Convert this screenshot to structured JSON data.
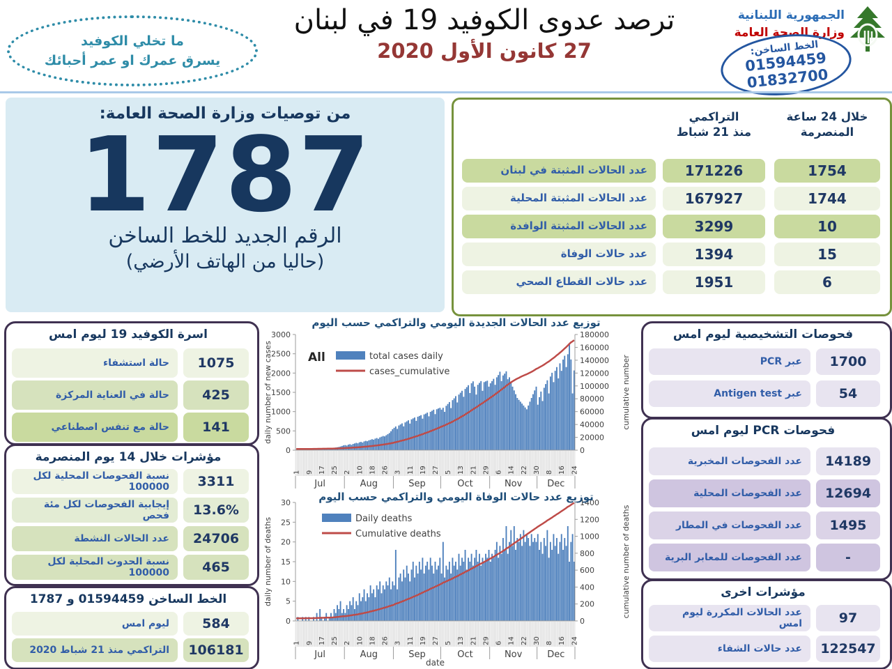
{
  "header": {
    "slogan_line1": "ما تخلي الكوفيد",
    "slogan_line2": "يسرق عمرك او عمر أحبائك",
    "title": "ترصد عدوى الكوفيد 19 في لبنان",
    "date": "27 كانون الأول 2020",
    "ministry_name": "الجمهورية اللبنانية",
    "ministry_dept": "وزارة الصحة العامة",
    "hotline_label": "الخط الساخن:",
    "hotline_1": "01594459",
    "hotline_2": "01832700"
  },
  "recommendation": {
    "title": "من توصيات وزارة الصحة العامة:",
    "number": "1787",
    "line1": "الرقم الجديد للخط الساخن",
    "line2": "(حاليا من الهاتف الأرضي)"
  },
  "summary_table": {
    "col_cumulative_l1": "التراكمي",
    "col_cumulative_l2": "منذ 21 شباط",
    "col_24h_l1": "خلال 24 ساعة",
    "col_24h_l2": "المنصرمة",
    "rows": [
      {
        "label": "عدد الحالات المثبتة في لبنان",
        "cumulative": "171226",
        "last24h": "1754",
        "shade": "g4"
      },
      {
        "label": "عدد الحالات المثبتة المحلية",
        "cumulative": "167927",
        "last24h": "1744",
        "shade": "g1"
      },
      {
        "label": "عدد الحالات المثبتة الوافدة",
        "cumulative": "3299",
        "last24h": "10",
        "shade": "g4"
      },
      {
        "label": "عدد حالات الوفاة",
        "cumulative": "1394",
        "last24h": "15",
        "shade": "g1"
      },
      {
        "label": "عدد حالات القطاع الصحي",
        "cumulative": "1951",
        "last24h": "6",
        "shade": "g1"
      }
    ]
  },
  "beds_box": {
    "title": "اسرة الكوفيد 19 ليوم امس",
    "rows": [
      {
        "value": "1075",
        "label": "حالة استشفاء",
        "shade": "g1"
      },
      {
        "value": "425",
        "label": "حالة في العناية المركزة",
        "shade": "g3"
      },
      {
        "value": "141",
        "label": "حالة مع تنفس اصطناعي",
        "shade": "g4"
      }
    ]
  },
  "indicators_14d_box": {
    "title": "مؤشرات خلال 14 يوم المنصرمة",
    "rows": [
      {
        "value": "3311",
        "label": "نسبة الفحوصات  المحلية لكل 100000",
        "shade": "g1"
      },
      {
        "value": "13.6%",
        "label": "إيجابية الفحوصات لكل مئة فحص",
        "shade": "g2"
      },
      {
        "value": "24706",
        "label": "عدد الحالات النشطة",
        "shade": "g3"
      },
      {
        "value": "465",
        "label": "نسبة الحدوث المحلية لكل 100000",
        "shade": "g3"
      }
    ]
  },
  "hotline_box": {
    "title": "الخط الساخن 01594459 و 1787",
    "rows": [
      {
        "value": "584",
        "label": "ليوم امس",
        "shade": "g1"
      },
      {
        "value": "106181",
        "label": "التراكمي منذ 21 شباط 2020",
        "shade": "g3"
      }
    ]
  },
  "diagnostics_box": {
    "title": "فحوصات التشخيصية ليوم امس",
    "rows": [
      {
        "value": "1700",
        "label": "عبر PCR",
        "shade": "l1"
      },
      {
        "value": "54",
        "label": "عبر Antigen test",
        "shade": "l1"
      }
    ]
  },
  "pcr_box": {
    "title": "فحوصات  PCR ليوم امس",
    "rows": [
      {
        "value": "14189",
        "label": "عدد الفحوصات المخبرية",
        "shade": "l1"
      },
      {
        "value": "12694",
        "label": "عدد الفحوصات المحلية",
        "shade": "l2"
      },
      {
        "value": "1495",
        "label": "عدد الفحوصات في المطار",
        "shade": "l3"
      },
      {
        "value": "-",
        "label": "عدد الفحوصات للمعابر البرية",
        "shade": "l2"
      }
    ]
  },
  "other_box": {
    "title": "مؤشرات اخرى",
    "rows": [
      {
        "value": "97",
        "label": "عدد الحالات المكررة  ليوم امس",
        "shade": "l1"
      },
      {
        "value": "122547",
        "label": "عدد حالات الشفاء",
        "shade": "l1"
      }
    ]
  },
  "colors": {
    "accent_navy": "#17375e",
    "label_blue": "#315da8",
    "green_border": "#76923c",
    "purple_border": "#3f3151",
    "panel_blue": "#d9ebf3",
    "bar_blue": "#4f81bd",
    "line_red": "#be4b48",
    "slogan_teal": "#2e8ca8",
    "date_red": "#953735",
    "ministry_red": "#c00000",
    "ministry_blue": "#2b6cb5",
    "cedar_green": "#35782b"
  },
  "chart_data": [
    {
      "type": "bar",
      "title": "توزيع عدد الحالات الجديدة اليومي والتراكمي حسب اليوم",
      "annotation": "All",
      "legend": [
        "total cases daily",
        "cases_cumulative"
      ],
      "ylabel_left": "daily number of new cases",
      "ylabel_right": "cumulative number",
      "xlabel": "",
      "ylim_left": [
        0,
        3000
      ],
      "ytick_left_step": 500,
      "ylim_right": [
        0,
        180000
      ],
      "ytick_right_step": 20000,
      "legend_position": "top-left",
      "grid": false,
      "months": [
        {
          "name": "Jul",
          "days": 31
        },
        {
          "name": "Aug",
          "days": 31
        },
        {
          "name": "Sep",
          "days": 30
        },
        {
          "name": "Oct",
          "days": 31
        },
        {
          "name": "Nov",
          "days": 30
        },
        {
          "name": "Dec",
          "days": 24
        }
      ],
      "day_tick_interval": 8,
      "bar_color": "#4f81bd",
      "line_color": "#be4b48",
      "cumulative_start": 1800,
      "cumulative_end": 171226,
      "daily": [
        12,
        15,
        9,
        18,
        14,
        22,
        19,
        25,
        21,
        28,
        24,
        32,
        28,
        36,
        31,
        40,
        34,
        44,
        38,
        48,
        42,
        52,
        55,
        60,
        64,
        70,
        76,
        84,
        96,
        110,
        125,
        132,
        120,
        145,
        155,
        138,
        162,
        175,
        190,
        178,
        205,
        215,
        198,
        228,
        242,
        232,
        255,
        268,
        285,
        272,
        300,
        315,
        295,
        332,
        350,
        368,
        358,
        388,
        415,
        445,
        492,
        545,
        580,
        615,
        552,
        640,
        668,
        695,
        618,
        720,
        748,
        775,
        690,
        800,
        825,
        848,
        760,
        868,
        888,
        908,
        818,
        928,
        948,
        975,
        878,
        995,
        1022,
        1050,
        935,
        1062,
        1082,
        1100,
        1052,
        1100,
        995,
        1150,
        1198,
        1248,
        1092,
        1298,
        1345,
        1402,
        1238,
        1442,
        1490,
        1540,
        1385,
        1588,
        1635,
        1685,
        1482,
        1735,
        1785,
        1648,
        1442,
        1695,
        1745,
        1792,
        1540,
        1765,
        1785,
        1802,
        1648,
        1735,
        1792,
        1850,
        1695,
        1890,
        1948,
        2035,
        1792,
        1938,
        1985,
        2045,
        1840,
        1890,
        1745,
        1648,
        1550,
        1452,
        1355,
        1305,
        1258,
        1208,
        1158,
        1108,
        1060,
        1158,
        1258,
        1355,
        1452,
        1550,
        1648,
        1180,
        1375,
        1520,
        1275,
        1618,
        1715,
        1812,
        1472,
        1910,
        2008,
        1765,
        2058,
        2155,
        1862,
        2252,
        2058,
        2350,
        2448,
        2155,
        2488,
        2740,
        2352,
        1472,
        2068
      ]
    },
    {
      "type": "bar",
      "title": "توزيع عدد حالات  الوفاة اليومي والتراكمي حسب اليوم",
      "annotation": "",
      "legend": [
        "Daily deaths",
        "Cumulative deaths"
      ],
      "ylabel_left": "daily number of deaths",
      "ylabel_right": "cumulative number of deaths",
      "xlabel": "date",
      "ylim_left": [
        0,
        30
      ],
      "ytick_left_step": 5,
      "ylim_right": [
        0,
        1400
      ],
      "ytick_right_step": 200,
      "legend_position": "top-left",
      "grid": false,
      "months": [
        {
          "name": "Jul",
          "days": 31
        },
        {
          "name": "Aug",
          "days": 31
        },
        {
          "name": "Sep",
          "days": 30
        },
        {
          "name": "Oct",
          "days": 31
        },
        {
          "name": "Nov",
          "days": 30
        },
        {
          "name": "Dec",
          "days": 24
        }
      ],
      "day_tick_interval": 8,
      "bar_color": "#4f81bd",
      "line_color": "#be4b48",
      "cumulative_start": 30,
      "cumulative_end": 1394,
      "daily": [
        0,
        1,
        0,
        0,
        1,
        0,
        1,
        0,
        1,
        0,
        0,
        1,
        0,
        2,
        0,
        3,
        1,
        0,
        1,
        2,
        0,
        1,
        2,
        1,
        3,
        2,
        4,
        3,
        5,
        2,
        3,
        2,
        4,
        3,
        5,
        4,
        6,
        3,
        5,
        4,
        7,
        5,
        6,
        8,
        5,
        7,
        6,
        9,
        7,
        8,
        6,
        9,
        8,
        10,
        7,
        9,
        8,
        10,
        9,
        11,
        8,
        10,
        9,
        18,
        8,
        11,
        12,
        10,
        13,
        11,
        14,
        12,
        10,
        13,
        15,
        11,
        14,
        12,
        15,
        13,
        16,
        12,
        14,
        15,
        13,
        16,
        14,
        12,
        15,
        13,
        14,
        16,
        12,
        20,
        11,
        14,
        13,
        15,
        12,
        16,
        14,
        15,
        13,
        17,
        14,
        16,
        15,
        18,
        13,
        16,
        15,
        17,
        14,
        16,
        18,
        15,
        17,
        14,
        16,
        15,
        17,
        16,
        18,
        15,
        17,
        16,
        18,
        20,
        16,
        19,
        17,
        21,
        18,
        24,
        17,
        20,
        23,
        19,
        24,
        18,
        21,
        20,
        22,
        19,
        23,
        20,
        22,
        21,
        19,
        22,
        20,
        21,
        20,
        22,
        18,
        20,
        17,
        21,
        19,
        23,
        16,
        20,
        18,
        22,
        19,
        21,
        17,
        20,
        22,
        18,
        21,
        19,
        24,
        15,
        20,
        22,
        15
      ]
    }
  ]
}
